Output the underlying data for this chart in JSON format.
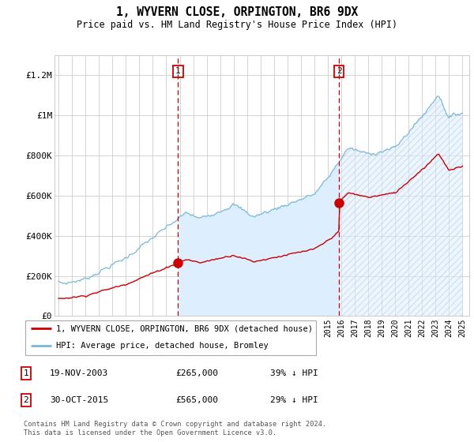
{
  "title": "1, WYVERN CLOSE, ORPINGTON, BR6 9DX",
  "subtitle": "Price paid vs. HM Land Registry's House Price Index (HPI)",
  "ylim": [
    0,
    1300000
  ],
  "xlim_start": 1994.7,
  "xlim_end": 2025.5,
  "purchase1": {
    "date_num": 2003.88,
    "price": 265000,
    "label": "1"
  },
  "purchase2": {
    "date_num": 2015.83,
    "price": 565000,
    "label": "2"
  },
  "hpi_color": "#7ab8d9",
  "price_color": "#cc0000",
  "shade_color": "#ddeeff",
  "legend1": "1, WYVERN CLOSE, ORPINGTON, BR6 9DX (detached house)",
  "legend2": "HPI: Average price, detached house, Bromley",
  "footer": "Contains HM Land Registry data © Crown copyright and database right 2024.\nThis data is licensed under the Open Government Licence v3.0.",
  "table": [
    {
      "num": "1",
      "date": "19-NOV-2003",
      "price": "£265,000",
      "pct": "39% ↓ HPI"
    },
    {
      "num": "2",
      "date": "30-OCT-2015",
      "price": "£565,000",
      "pct": "29% ↓ HPI"
    }
  ]
}
